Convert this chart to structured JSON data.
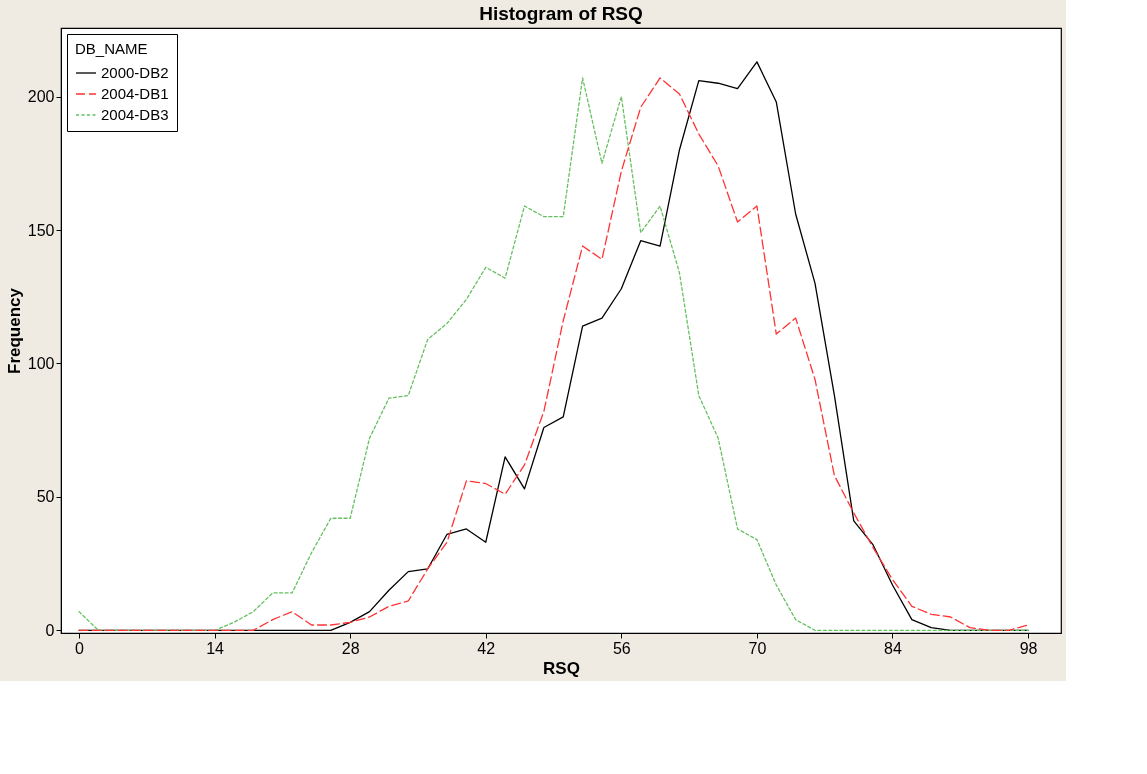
{
  "chart_data": {
    "type": "line",
    "title": "Histogram of RSQ",
    "xlabel": "RSQ",
    "ylabel": "Frequency",
    "legend_title": "DB_NAME",
    "x": [
      0,
      2,
      4,
      6,
      8,
      10,
      12,
      14,
      16,
      18,
      20,
      22,
      24,
      26,
      28,
      30,
      32,
      34,
      36,
      38,
      40,
      42,
      44,
      46,
      48,
      50,
      52,
      54,
      56,
      58,
      60,
      62,
      64,
      66,
      68,
      70,
      72,
      74,
      76,
      78,
      80,
      82,
      84,
      86,
      88,
      90,
      92,
      94,
      96,
      98
    ],
    "series": [
      {
        "name": "2000-DB2",
        "color": "#000000",
        "line_style": "solid",
        "values": [
          0,
          0,
          0,
          0,
          0,
          0,
          0,
          0,
          0,
          0,
          0,
          0,
          0,
          0,
          3,
          7,
          15,
          22,
          23,
          36,
          38,
          33,
          65,
          53,
          76,
          80,
          114,
          117,
          128,
          146,
          144,
          180,
          206,
          205,
          203,
          213,
          198,
          156,
          130,
          88,
          41,
          32,
          17,
          4,
          1,
          0,
          0,
          0,
          0,
          0
        ]
      },
      {
        "name": "2004-DB1",
        "color": "#ff3333",
        "line_style": "dashed",
        "values": [
          0,
          0,
          0,
          0,
          0,
          0,
          0,
          0,
          0,
          0,
          4,
          7,
          2,
          2,
          3,
          5,
          9,
          11,
          23,
          33,
          56,
          55,
          51,
          62,
          82,
          116,
          144,
          139,
          172,
          196,
          207,
          201,
          186,
          174,
          153,
          159,
          111,
          117,
          94,
          58,
          44,
          31,
          19,
          9,
          6,
          5,
          1,
          0,
          0,
          2
        ]
      },
      {
        "name": "2004-DB3",
        "color": "#66c060",
        "line_style": "dotted",
        "values": [
          7,
          0,
          0,
          0,
          0,
          0,
          0,
          0,
          3,
          7,
          14,
          14,
          29,
          42,
          42,
          72,
          87,
          88,
          109,
          115,
          124,
          136,
          132,
          159,
          155,
          155,
          207,
          175,
          200,
          149,
          159,
          134,
          88,
          72,
          38,
          34,
          17,
          4,
          0,
          0,
          0,
          0,
          0,
          0,
          0,
          0,
          0,
          0,
          0,
          0
        ]
      }
    ],
    "xlim": [
      -1.86,
      101.4
    ],
    "ylim": [
      -1,
      225.7
    ],
    "xticks": [
      0,
      14,
      28,
      42,
      56,
      70,
      84,
      98
    ],
    "yticks": [
      0,
      50,
      100,
      150,
      200
    ],
    "grid": false,
    "legend": "top left",
    "marker": "none"
  }
}
